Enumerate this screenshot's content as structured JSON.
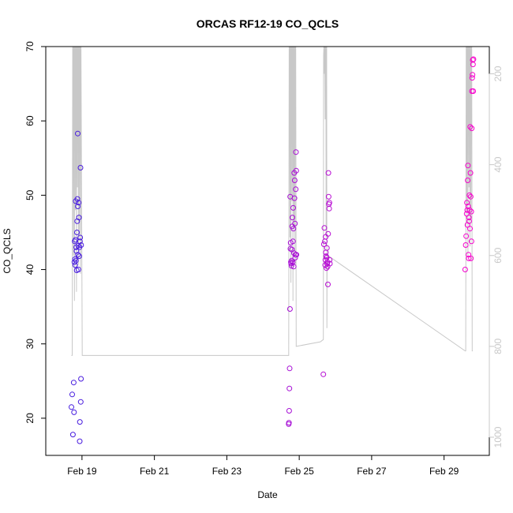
{
  "chart_data": {
    "type": "scatter",
    "title": "ORCAS RF12-19 CO_QCLS",
    "xlabel": "Date",
    "ylabel": "CO_QCLS",
    "xlim": [
      "2016-02-18 00:00",
      "2016-03-01 06:00"
    ],
    "ylim": [
      15,
      70
    ],
    "x_ticks": [
      {
        "date": "2016-02-19",
        "label": "Feb 19"
      },
      {
        "date": "2016-02-21",
        "label": "Feb 21"
      },
      {
        "date": "2016-02-23",
        "label": "Feb 23"
      },
      {
        "date": "2016-02-25",
        "label": "Feb 25"
      },
      {
        "date": "2016-02-27",
        "label": "Feb 27"
      },
      {
        "date": "2016-02-29",
        "label": "Feb 29"
      }
    ],
    "y_ticks": [
      20,
      30,
      40,
      50,
      60,
      70
    ],
    "y2": {
      "reversed": true,
      "range": [
        1040,
        140
      ],
      "ticks": [
        200,
        400,
        600,
        800,
        1000
      ],
      "color": "#c8c8c8",
      "trace_color": "#c8c8c8"
    },
    "grid": false,
    "legend": "none",
    "marker": "open-circle",
    "color_gradient": [
      "#3a1ee0",
      "#ff00cc"
    ],
    "series": [
      {
        "points": [
          [
            "2016-02-18 17:00",
            21.5
          ],
          [
            "2016-02-18 17:30",
            23.2
          ],
          [
            "2016-02-18 18:00",
            17.8
          ],
          [
            "2016-02-18 18:30",
            24.8
          ],
          [
            "2016-02-18 18:45",
            20.8
          ],
          [
            "2016-02-18 19:00",
            41.0
          ],
          [
            "2016-02-18 19:10",
            43.8
          ],
          [
            "2016-02-18 19:20",
            41.4
          ],
          [
            "2016-02-18 19:30",
            40.6
          ],
          [
            "2016-02-18 19:40",
            44.0
          ],
          [
            "2016-02-18 19:50",
            49.2
          ],
          [
            "2016-02-18 20:00",
            41.2
          ],
          [
            "2016-02-18 20:10",
            43.0
          ],
          [
            "2016-02-18 20:20",
            42.5
          ],
          [
            "2016-02-18 20:30",
            39.9
          ],
          [
            "2016-02-18 20:40",
            45.0
          ],
          [
            "2016-02-18 20:50",
            46.5
          ],
          [
            "2016-02-18 21:00",
            49.5
          ],
          [
            "2016-02-18 21:10",
            58.3
          ],
          [
            "2016-02-18 21:15",
            48.5
          ],
          [
            "2016-02-18 21:20",
            42.0
          ],
          [
            "2016-02-18 21:30",
            43.2
          ],
          [
            "2016-02-18 21:40",
            40.0
          ],
          [
            "2016-02-18 21:50",
            49.0
          ],
          [
            "2016-02-18 22:00",
            47.0
          ],
          [
            "2016-02-18 22:10",
            41.8
          ],
          [
            "2016-02-18 22:20",
            43.0
          ],
          [
            "2016-02-18 22:30",
            16.9
          ],
          [
            "2016-02-18 22:35",
            19.5
          ],
          [
            "2016-02-18 22:40",
            43.8
          ],
          [
            "2016-02-18 22:50",
            44.3
          ],
          [
            "2016-02-18 23:00",
            53.7
          ],
          [
            "2016-02-18 23:10",
            22.2
          ],
          [
            "2016-02-18 23:20",
            25.3
          ],
          [
            "2016-02-18 23:25",
            43.3
          ]
        ]
      },
      {
        "points": [
          [
            "2016-02-24 17:00",
            19.2
          ],
          [
            "2016-02-24 17:10",
            19.4
          ],
          [
            "2016-02-24 17:20",
            21.0
          ],
          [
            "2016-02-24 17:30",
            24.0
          ],
          [
            "2016-02-24 17:40",
            26.7
          ],
          [
            "2016-02-24 17:50",
            34.7
          ],
          [
            "2016-02-24 18:00",
            49.8
          ],
          [
            "2016-02-24 18:10",
            42.8
          ],
          [
            "2016-02-24 18:20",
            43.6
          ],
          [
            "2016-02-24 18:30",
            41.0
          ],
          [
            "2016-02-24 18:40",
            40.8
          ],
          [
            "2016-02-24 18:50",
            40.5
          ],
          [
            "2016-02-24 19:00",
            41.2
          ],
          [
            "2016-02-24 19:10",
            42.7
          ],
          [
            "2016-02-24 19:20",
            45.8
          ],
          [
            "2016-02-24 19:30",
            47.0
          ],
          [
            "2016-02-24 19:40",
            41.0
          ],
          [
            "2016-02-24 19:50",
            43.8
          ],
          [
            "2016-02-24 20:00",
            48.3
          ],
          [
            "2016-02-24 20:10",
            45.5
          ],
          [
            "2016-02-24 20:20",
            40.4
          ],
          [
            "2016-02-24 20:30",
            42.2
          ],
          [
            "2016-02-24 20:40",
            53.0
          ],
          [
            "2016-02-24 20:50",
            49.6
          ],
          [
            "2016-02-24 21:00",
            52.0
          ],
          [
            "2016-02-24 21:10",
            46.2
          ],
          [
            "2016-02-24 21:20",
            41.6
          ],
          [
            "2016-02-24 21:30",
            42.0
          ],
          [
            "2016-02-24 21:40",
            50.8
          ],
          [
            "2016-02-24 21:50",
            55.8
          ],
          [
            "2016-02-24 22:00",
            53.3
          ],
          [
            "2016-02-24 22:10",
            42.0
          ]
        ]
      },
      {
        "points": [
          [
            "2016-02-25 16:00",
            25.9
          ],
          [
            "2016-02-25 16:20",
            43.4
          ],
          [
            "2016-02-25 16:40",
            45.6
          ],
          [
            "2016-02-25 17:00",
            43.8
          ],
          [
            "2016-02-25 17:10",
            40.6
          ],
          [
            "2016-02-25 17:20",
            41.3
          ],
          [
            "2016-02-25 17:30",
            44.4
          ],
          [
            "2016-02-25 17:40",
            42.3
          ],
          [
            "2016-02-25 17:50",
            41.8
          ],
          [
            "2016-02-25 18:00",
            40.2
          ],
          [
            "2016-02-25 18:10",
            41.6
          ],
          [
            "2016-02-25 18:20",
            42.9
          ],
          [
            "2016-02-25 18:30",
            40.8
          ],
          [
            "2016-02-25 18:40",
            41.0
          ],
          [
            "2016-02-25 18:50",
            40.4
          ],
          [
            "2016-02-25 19:00",
            38.0
          ],
          [
            "2016-02-25 19:10",
            44.8
          ],
          [
            "2016-02-25 19:20",
            53.0
          ],
          [
            "2016-02-25 19:30",
            49.8
          ],
          [
            "2016-02-25 19:40",
            48.8
          ],
          [
            "2016-02-25 19:50",
            48.2
          ],
          [
            "2016-02-25 20:00",
            49.0
          ],
          [
            "2016-02-25 20:10",
            41.3
          ],
          [
            "2016-02-25 20:20",
            40.8
          ]
        ]
      },
      {
        "points": [
          [
            "2016-02-29 14:00",
            40.0
          ],
          [
            "2016-02-29 14:20",
            43.3
          ],
          [
            "2016-02-29 14:40",
            44.5
          ],
          [
            "2016-02-29 15:00",
            47.5
          ],
          [
            "2016-02-29 15:10",
            49.0
          ],
          [
            "2016-02-29 15:20",
            48.0
          ],
          [
            "2016-02-29 15:30",
            46.0
          ],
          [
            "2016-02-29 15:40",
            52.0
          ],
          [
            "2016-02-29 15:50",
            54.0
          ],
          [
            "2016-02-29 16:00",
            48.5
          ],
          [
            "2016-02-29 16:10",
            42.0
          ],
          [
            "2016-02-29 16:20",
            41.5
          ],
          [
            "2016-02-29 16:30",
            47.0
          ],
          [
            "2016-02-29 16:40",
            46.5
          ],
          [
            "2016-02-29 16:50",
            50.0
          ],
          [
            "2016-02-29 17:00",
            48.0
          ],
          [
            "2016-02-29 17:10",
            45.5
          ],
          [
            "2016-02-29 17:20",
            59.2
          ],
          [
            "2016-02-29 17:30",
            53.0
          ],
          [
            "2016-02-29 17:40",
            49.8
          ],
          [
            "2016-02-29 17:50",
            41.5
          ],
          [
            "2016-02-29 18:00",
            47.8
          ],
          [
            "2016-02-29 18:10",
            43.8
          ],
          [
            "2016-02-29 18:20",
            59.0
          ],
          [
            "2016-02-29 18:30",
            64.0
          ],
          [
            "2016-02-29 18:40",
            65.8
          ],
          [
            "2016-02-29 18:50",
            66.2
          ],
          [
            "2016-02-29 19:00",
            68.2
          ],
          [
            "2016-02-29 19:10",
            67.6
          ],
          [
            "2016-02-29 19:20",
            64.0
          ],
          [
            "2016-02-29 19:30",
            68.3
          ]
        ]
      }
    ],
    "y2_trace": [
      [
        "2016-02-18 17:00",
        820
      ],
      [
        "2016-02-18 17:30",
        820
      ],
      [
        "2016-02-18 17:50",
        140
      ],
      [
        "2016-02-18 18:10",
        140
      ],
      [
        "2016-02-18 18:20",
        600
      ],
      [
        "2016-02-18 18:30",
        140
      ],
      [
        "2016-02-18 18:50",
        140
      ],
      [
        "2016-02-18 19:00",
        700
      ],
      [
        "2016-02-18 19:10",
        140
      ],
      [
        "2016-02-18 19:30",
        140
      ],
      [
        "2016-02-18 19:40",
        500
      ],
      [
        "2016-02-18 19:50",
        140
      ],
      [
        "2016-02-18 20:10",
        140
      ],
      [
        "2016-02-18 20:20",
        680
      ],
      [
        "2016-02-18 20:30",
        140
      ],
      [
        "2016-02-18 20:50",
        140
      ],
      [
        "2016-02-18 21:00",
        450
      ],
      [
        "2016-02-18 21:10",
        140
      ],
      [
        "2016-02-18 21:30",
        140
      ],
      [
        "2016-02-18 21:40",
        620
      ],
      [
        "2016-02-18 21:50",
        140
      ],
      [
        "2016-02-18 22:10",
        140
      ],
      [
        "2016-02-18 22:20",
        560
      ],
      [
        "2016-02-18 22:30",
        140
      ],
      [
        "2016-02-18 22:50",
        140
      ],
      [
        "2016-02-18 23:00",
        640
      ],
      [
        "2016-02-18 23:10",
        140
      ],
      [
        "2016-02-18 23:20",
        140
      ],
      [
        "2016-02-19 00:10",
        820
      ],
      [
        "2016-02-24 14:00",
        820
      ],
      [
        "2016-02-24 17:00",
        820
      ],
      [
        "2016-02-24 17:20",
        140
      ],
      [
        "2016-02-24 17:40",
        140
      ],
      [
        "2016-02-24 17:50",
        560
      ],
      [
        "2016-02-24 18:00",
        140
      ],
      [
        "2016-02-24 18:20",
        140
      ],
      [
        "2016-02-24 18:30",
        660
      ],
      [
        "2016-02-24 18:40",
        140
      ],
      [
        "2016-02-24 19:00",
        140
      ],
      [
        "2016-02-24 19:10",
        480
      ],
      [
        "2016-02-24 19:20",
        140
      ],
      [
        "2016-02-24 19:40",
        140
      ],
      [
        "2016-02-24 19:50",
        700
      ],
      [
        "2016-02-24 20:00",
        140
      ],
      [
        "2016-02-24 20:20",
        140
      ],
      [
        "2016-02-24 20:30",
        540
      ],
      [
        "2016-02-24 20:40",
        140
      ],
      [
        "2016-02-24 21:00",
        140
      ],
      [
        "2016-02-24 21:10",
        620
      ],
      [
        "2016-02-24 21:20",
        140
      ],
      [
        "2016-02-24 21:40",
        140
      ],
      [
        "2016-02-24 22:00",
        800
      ],
      [
        "2016-02-25 14:00",
        790
      ],
      [
        "2016-02-25 16:00",
        785
      ],
      [
        "2016-02-25 16:10",
        160
      ],
      [
        "2016-02-25 16:20",
        140
      ],
      [
        "2016-02-25 16:30",
        200
      ],
      [
        "2016-02-25 16:40",
        140
      ],
      [
        "2016-02-25 17:00",
        140
      ],
      [
        "2016-02-25 17:10",
        300
      ],
      [
        "2016-02-25 17:20",
        140
      ],
      [
        "2016-02-25 17:40",
        140
      ],
      [
        "2016-02-25 17:50",
        560
      ],
      [
        "2016-02-25 18:00",
        140
      ],
      [
        "2016-02-25 18:10",
        140
      ],
      [
        "2016-02-25 18:20",
        760
      ],
      [
        "2016-02-25 18:30",
        600
      ],
      [
        "2016-02-25 19:00",
        600
      ],
      [
        "2016-02-29 14:00",
        810
      ],
      [
        "2016-02-29 14:20",
        810
      ],
      [
        "2016-02-29 14:40",
        140
      ],
      [
        "2016-02-29 15:00",
        140
      ],
      [
        "2016-02-29 15:10",
        500
      ],
      [
        "2016-02-29 15:20",
        140
      ],
      [
        "2016-02-29 15:40",
        140
      ],
      [
        "2016-02-29 15:50",
        600
      ],
      [
        "2016-02-29 16:00",
        140
      ],
      [
        "2016-02-29 16:20",
        140
      ],
      [
        "2016-02-29 16:30",
        450
      ],
      [
        "2016-02-29 16:40",
        140
      ],
      [
        "2016-02-29 17:00",
        140
      ],
      [
        "2016-02-29 17:10",
        580
      ],
      [
        "2016-02-29 17:20",
        140
      ],
      [
        "2016-02-29 17:40",
        140
      ],
      [
        "2016-02-29 17:50",
        520
      ],
      [
        "2016-02-29 18:00",
        140
      ],
      [
        "2016-02-29 18:20",
        140
      ],
      [
        "2016-02-29 18:40",
        810
      ],
      [
        "2016-02-29 19:00",
        810
      ]
    ]
  }
}
